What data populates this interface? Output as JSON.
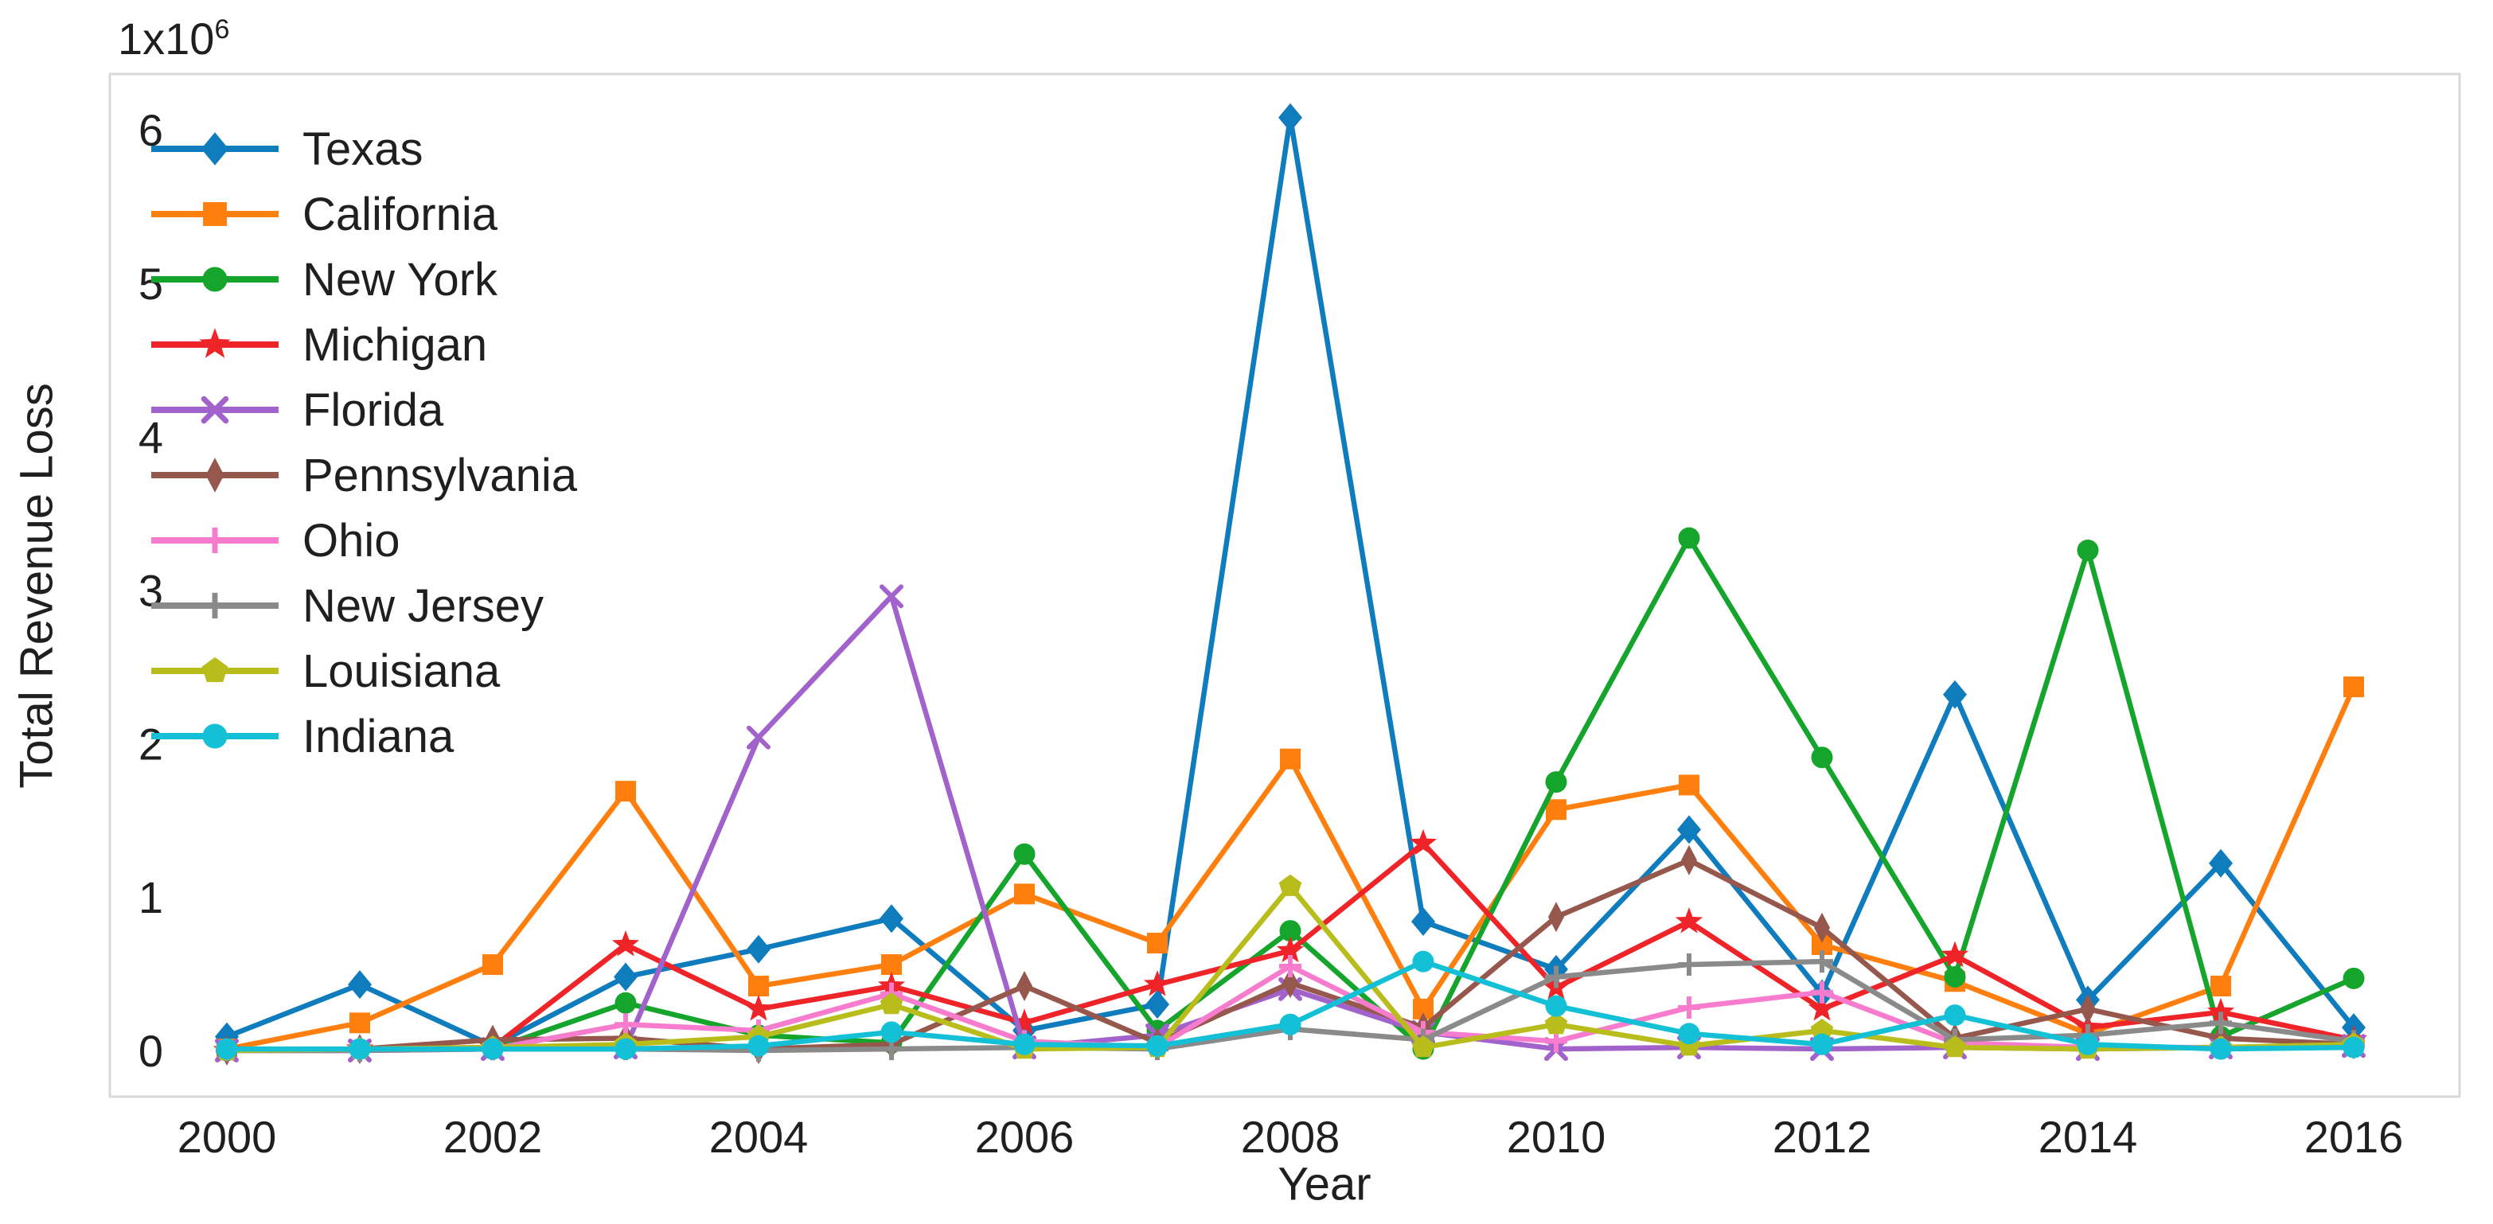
{
  "chart_data": {
    "type": "line",
    "title": "",
    "xlabel": "Year",
    "ylabel": "Total Revenue Loss",
    "offset_base": "1x10",
    "offset_exp": "6",
    "unit_multiplier": 1000000,
    "x": [
      2000,
      2001,
      2002,
      2003,
      2004,
      2005,
      2006,
      2007,
      2008,
      2009,
      2010,
      2011,
      2012,
      2013,
      2014,
      2015,
      2016
    ],
    "x_ticks": [
      2000,
      2002,
      2004,
      2006,
      2008,
      2010,
      2012,
      2014,
      2016
    ],
    "y_ticks": [
      0,
      1,
      2,
      3,
      4,
      5,
      6
    ],
    "xlim": [
      1999.1,
      2016.8
    ],
    "ylim": [
      -0.3,
      6.37
    ],
    "grid": false,
    "legend_position": "upper-left-inside",
    "axis_color": "#d8d8d8",
    "text_color": "#1f1f1f",
    "series": [
      {
        "name": "Texas",
        "color": "#0e7cbd",
        "marker": "diamond",
        "values": [
          0.09,
          0.43,
          0.03,
          0.48,
          0.66,
          0.86,
          0.13,
          0.3,
          6.08,
          0.84,
          0.53,
          1.44,
          0.37,
          2.32,
          0.33,
          1.22,
          0.15
        ]
      },
      {
        "name": "California",
        "color": "#ff7f0e",
        "marker": "square",
        "values": [
          0.01,
          0.18,
          0.56,
          1.69,
          0.42,
          0.56,
          1.02,
          0.7,
          1.9,
          0.27,
          1.57,
          1.73,
          0.69,
          0.45,
          0.11,
          0.42,
          2.37
        ]
      },
      {
        "name": "New York",
        "color": "#16a52c",
        "marker": "circle",
        "values": [
          0.0,
          0.01,
          0.01,
          0.31,
          0.1,
          0.05,
          1.28,
          0.13,
          0.78,
          0.01,
          1.75,
          3.34,
          1.91,
          0.48,
          3.26,
          0.09,
          0.47
        ]
      },
      {
        "name": "Michigan",
        "color": "#ef2429",
        "marker": "star",
        "values": [
          0.0,
          0.01,
          0.02,
          0.69,
          0.27,
          0.42,
          0.18,
          0.43,
          0.65,
          1.35,
          0.41,
          0.84,
          0.27,
          0.62,
          0.15,
          0.25,
          0.07
        ]
      },
      {
        "name": "Florida",
        "color": "#a262cc",
        "marker": "x",
        "values": [
          0.0,
          0.0,
          0.01,
          0.02,
          2.04,
          2.96,
          0.02,
          0.1,
          0.4,
          0.12,
          0.01,
          0.02,
          0.01,
          0.02,
          0.01,
          0.02,
          0.03
        ]
      },
      {
        "name": "Pennsylvania",
        "color": "#96584c",
        "marker": "thin-diamond",
        "values": [
          0.0,
          0.01,
          0.07,
          0.08,
          0.01,
          0.04,
          0.42,
          0.05,
          0.44,
          0.15,
          0.87,
          1.24,
          0.8,
          0.08,
          0.27,
          0.08,
          0.04
        ]
      },
      {
        "name": "Ohio",
        "color": "#f77ccd",
        "marker": "plus",
        "values": [
          0.0,
          0.01,
          0.01,
          0.17,
          0.13,
          0.37,
          0.06,
          0.02,
          0.55,
          0.12,
          0.06,
          0.28,
          0.38,
          0.05,
          0.02,
          0.02,
          0.03
        ]
      },
      {
        "name": "New Jersey",
        "color": "#8a8a8a",
        "marker": "plus",
        "values": [
          0.0,
          0.0,
          0.01,
          0.01,
          0.0,
          0.01,
          0.02,
          0.01,
          0.14,
          0.07,
          0.48,
          0.56,
          0.58,
          0.07,
          0.1,
          0.18,
          0.06
        ]
      },
      {
        "name": "Louisiana",
        "color": "#b8bd1c",
        "marker": "pentagon",
        "values": [
          0.0,
          0.01,
          0.02,
          0.04,
          0.09,
          0.3,
          0.01,
          0.02,
          1.07,
          0.02,
          0.17,
          0.03,
          0.13,
          0.02,
          0.01,
          0.02,
          0.04
        ]
      },
      {
        "name": "Indiana",
        "color": "#14c0d6",
        "marker": "circle",
        "values": [
          0.01,
          0.01,
          0.01,
          0.01,
          0.03,
          0.12,
          0.04,
          0.03,
          0.17,
          0.58,
          0.29,
          0.11,
          0.04,
          0.23,
          0.04,
          0.01,
          0.02
        ]
      }
    ]
  }
}
